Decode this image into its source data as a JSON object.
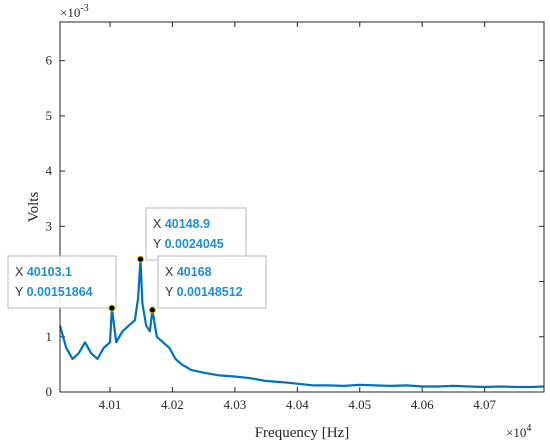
{
  "chart_data": {
    "type": "line",
    "xlabel": "Frequency [Hz]",
    "ylabel": "Volts",
    "x_exponent_label": "×10",
    "x_exponent_power": "4",
    "y_exponent_label": "×10",
    "y_exponent_power": "-3",
    "xlim": [
      40020,
      40795
    ],
    "ylim": [
      0,
      0.0067
    ],
    "x_ticks": [
      40100,
      40200,
      40300,
      40400,
      40500,
      40600,
      40700
    ],
    "x_tick_labels": [
      "4.01",
      "4.02",
      "4.03",
      "4.04",
      "4.05",
      "4.06",
      "4.07"
    ],
    "y_ticks": [
      0,
      0.001,
      0.002,
      0.003,
      0.004,
      0.005,
      0.006
    ],
    "y_tick_labels": [
      "0",
      "1",
      "2",
      "3",
      "4",
      "5",
      "6"
    ],
    "series": [
      {
        "color": "#0072bd",
        "x": [
          40020,
          40030,
          40040,
          40050,
          40060,
          40070,
          40080,
          40090,
          40100,
          40103.1,
          40110,
          40120,
          40130,
          40140,
          40145,
          40148.9,
          40152,
          40158,
          40164,
          40168,
          40175,
          40185,
          40195,
          40205,
          40215,
          40230,
          40250,
          40275,
          40300,
          40325,
          40350,
          40375,
          40400,
          40425,
          40450,
          40475,
          40500,
          40525,
          40550,
          40575,
          40600,
          40625,
          40650,
          40675,
          40700,
          40725,
          40750,
          40775,
          40795
        ],
        "y": [
          0.0012,
          0.0008,
          0.0006,
          0.0007,
          0.0009,
          0.0007,
          0.0006,
          0.0008,
          0.0009,
          0.00151864,
          0.0009,
          0.0011,
          0.0012,
          0.0013,
          0.0017,
          0.0024045,
          0.0016,
          0.0012,
          0.0011,
          0.00148512,
          0.001,
          0.0009,
          0.0008,
          0.0006,
          0.0005,
          0.0004,
          0.00035,
          0.0003,
          0.00028,
          0.00025,
          0.0002,
          0.00018,
          0.00015,
          0.00012,
          0.00012,
          0.00011,
          0.00013,
          0.00012,
          0.00011,
          0.00012,
          0.0001,
          0.0001,
          0.00011,
          0.0001,
          9e-05,
          0.0001,
          9e-05,
          9e-05,
          0.0001
        ]
      }
    ],
    "datatips": [
      {
        "x_key": "X",
        "x_value": "40103.1",
        "y_key": "Y",
        "y_value": "0.00151864",
        "x": 40103.1,
        "y": 0.00151864
      },
      {
        "x_key": "X",
        "x_value": "40148.9",
        "y_key": "Y",
        "y_value": "0.0024045",
        "x": 40148.9,
        "y": 0.0024045
      },
      {
        "x_key": "X",
        "x_value": "40168",
        "y_key": "Y",
        "y_value": "0.00148512",
        "x": 40168,
        "y": 0.00148512
      }
    ],
    "grid": false,
    "box": true
  }
}
